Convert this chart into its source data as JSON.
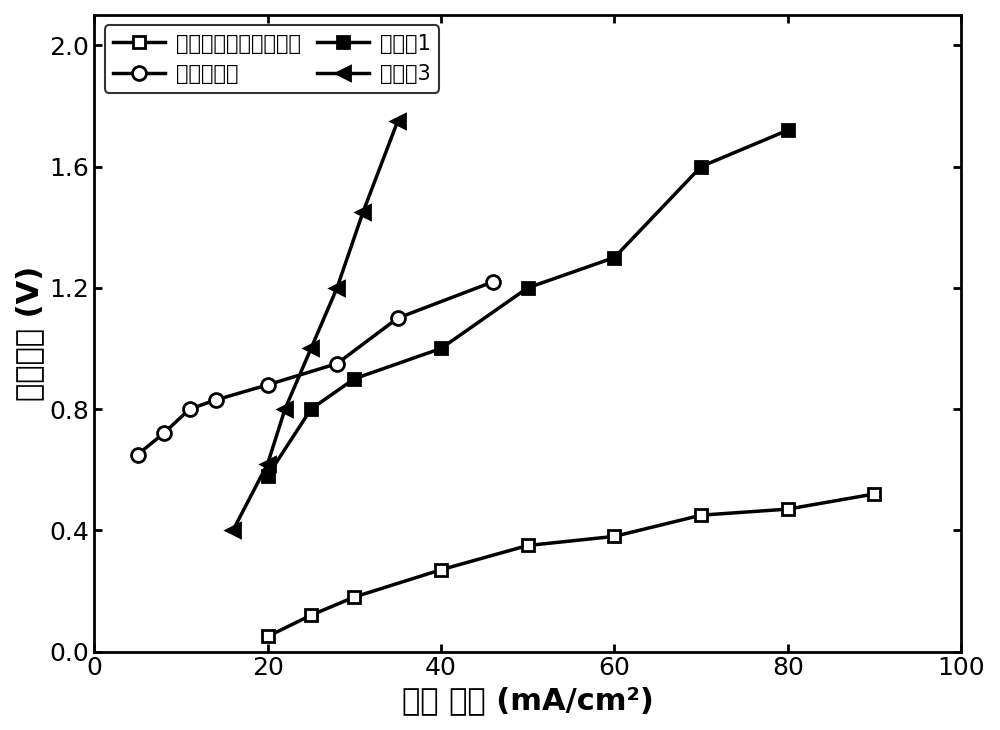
{
  "series": [
    {
      "label": "未改性磺化聚醚醚锐膜",
      "x": [
        20,
        25,
        30,
        40,
        50,
        60,
        70,
        80,
        90
      ],
      "y": [
        0.05,
        0.12,
        0.18,
        0.27,
        0.35,
        0.38,
        0.45,
        0.47,
        0.52
      ],
      "marker": "s",
      "marker_facecolor": "white",
      "marker_edgecolor": "black",
      "linecolor": "black",
      "linewidth": 2.5,
      "markersize": 9
    },
    {
      "label": "液体缓冲层",
      "x": [
        5,
        8,
        11,
        14,
        20,
        28,
        35,
        46
      ],
      "y": [
        0.65,
        0.72,
        0.8,
        0.83,
        0.88,
        0.95,
        1.1,
        1.22
      ],
      "marker": "o",
      "marker_facecolor": "white",
      "marker_edgecolor": "black",
      "linecolor": "black",
      "linewidth": 2.5,
      "markersize": 10
    },
    {
      "label": "实施例1",
      "x": [
        20,
        25,
        30,
        40,
        50,
        60,
        70,
        80
      ],
      "y": [
        0.58,
        0.8,
        0.9,
        1.0,
        1.2,
        1.3,
        1.6,
        1.72
      ],
      "marker": "s",
      "marker_facecolor": "black",
      "marker_edgecolor": "black",
      "linecolor": "black",
      "linewidth": 2.5,
      "markersize": 9
    },
    {
      "label": "实施例3",
      "x": [
        16,
        20,
        22,
        25,
        28,
        31,
        35
      ],
      "y": [
        0.4,
        0.62,
        0.8,
        1.0,
        1.2,
        1.45,
        1.75
      ],
      "marker": "<",
      "marker_facecolor": "black",
      "marker_edgecolor": "black",
      "linecolor": "black",
      "linewidth": 2.5,
      "markersize": 10
    }
  ],
  "xlabel": "电流 密度 (mA/cm²)",
  "ylabel": "阴极电势 (V)",
  "xlim": [
    0,
    100
  ],
  "ylim": [
    0.0,
    2.1
  ],
  "yticks": [
    0.0,
    0.4,
    0.8,
    1.2,
    1.6,
    2.0
  ],
  "xticks": [
    0,
    20,
    40,
    60,
    80,
    100
  ],
  "legend_loc": "upper left",
  "figsize": [
    10.0,
    7.3
  ],
  "dpi": 100,
  "font_size_axis_label": 22,
  "font_size_tick": 18,
  "font_size_legend": 15
}
